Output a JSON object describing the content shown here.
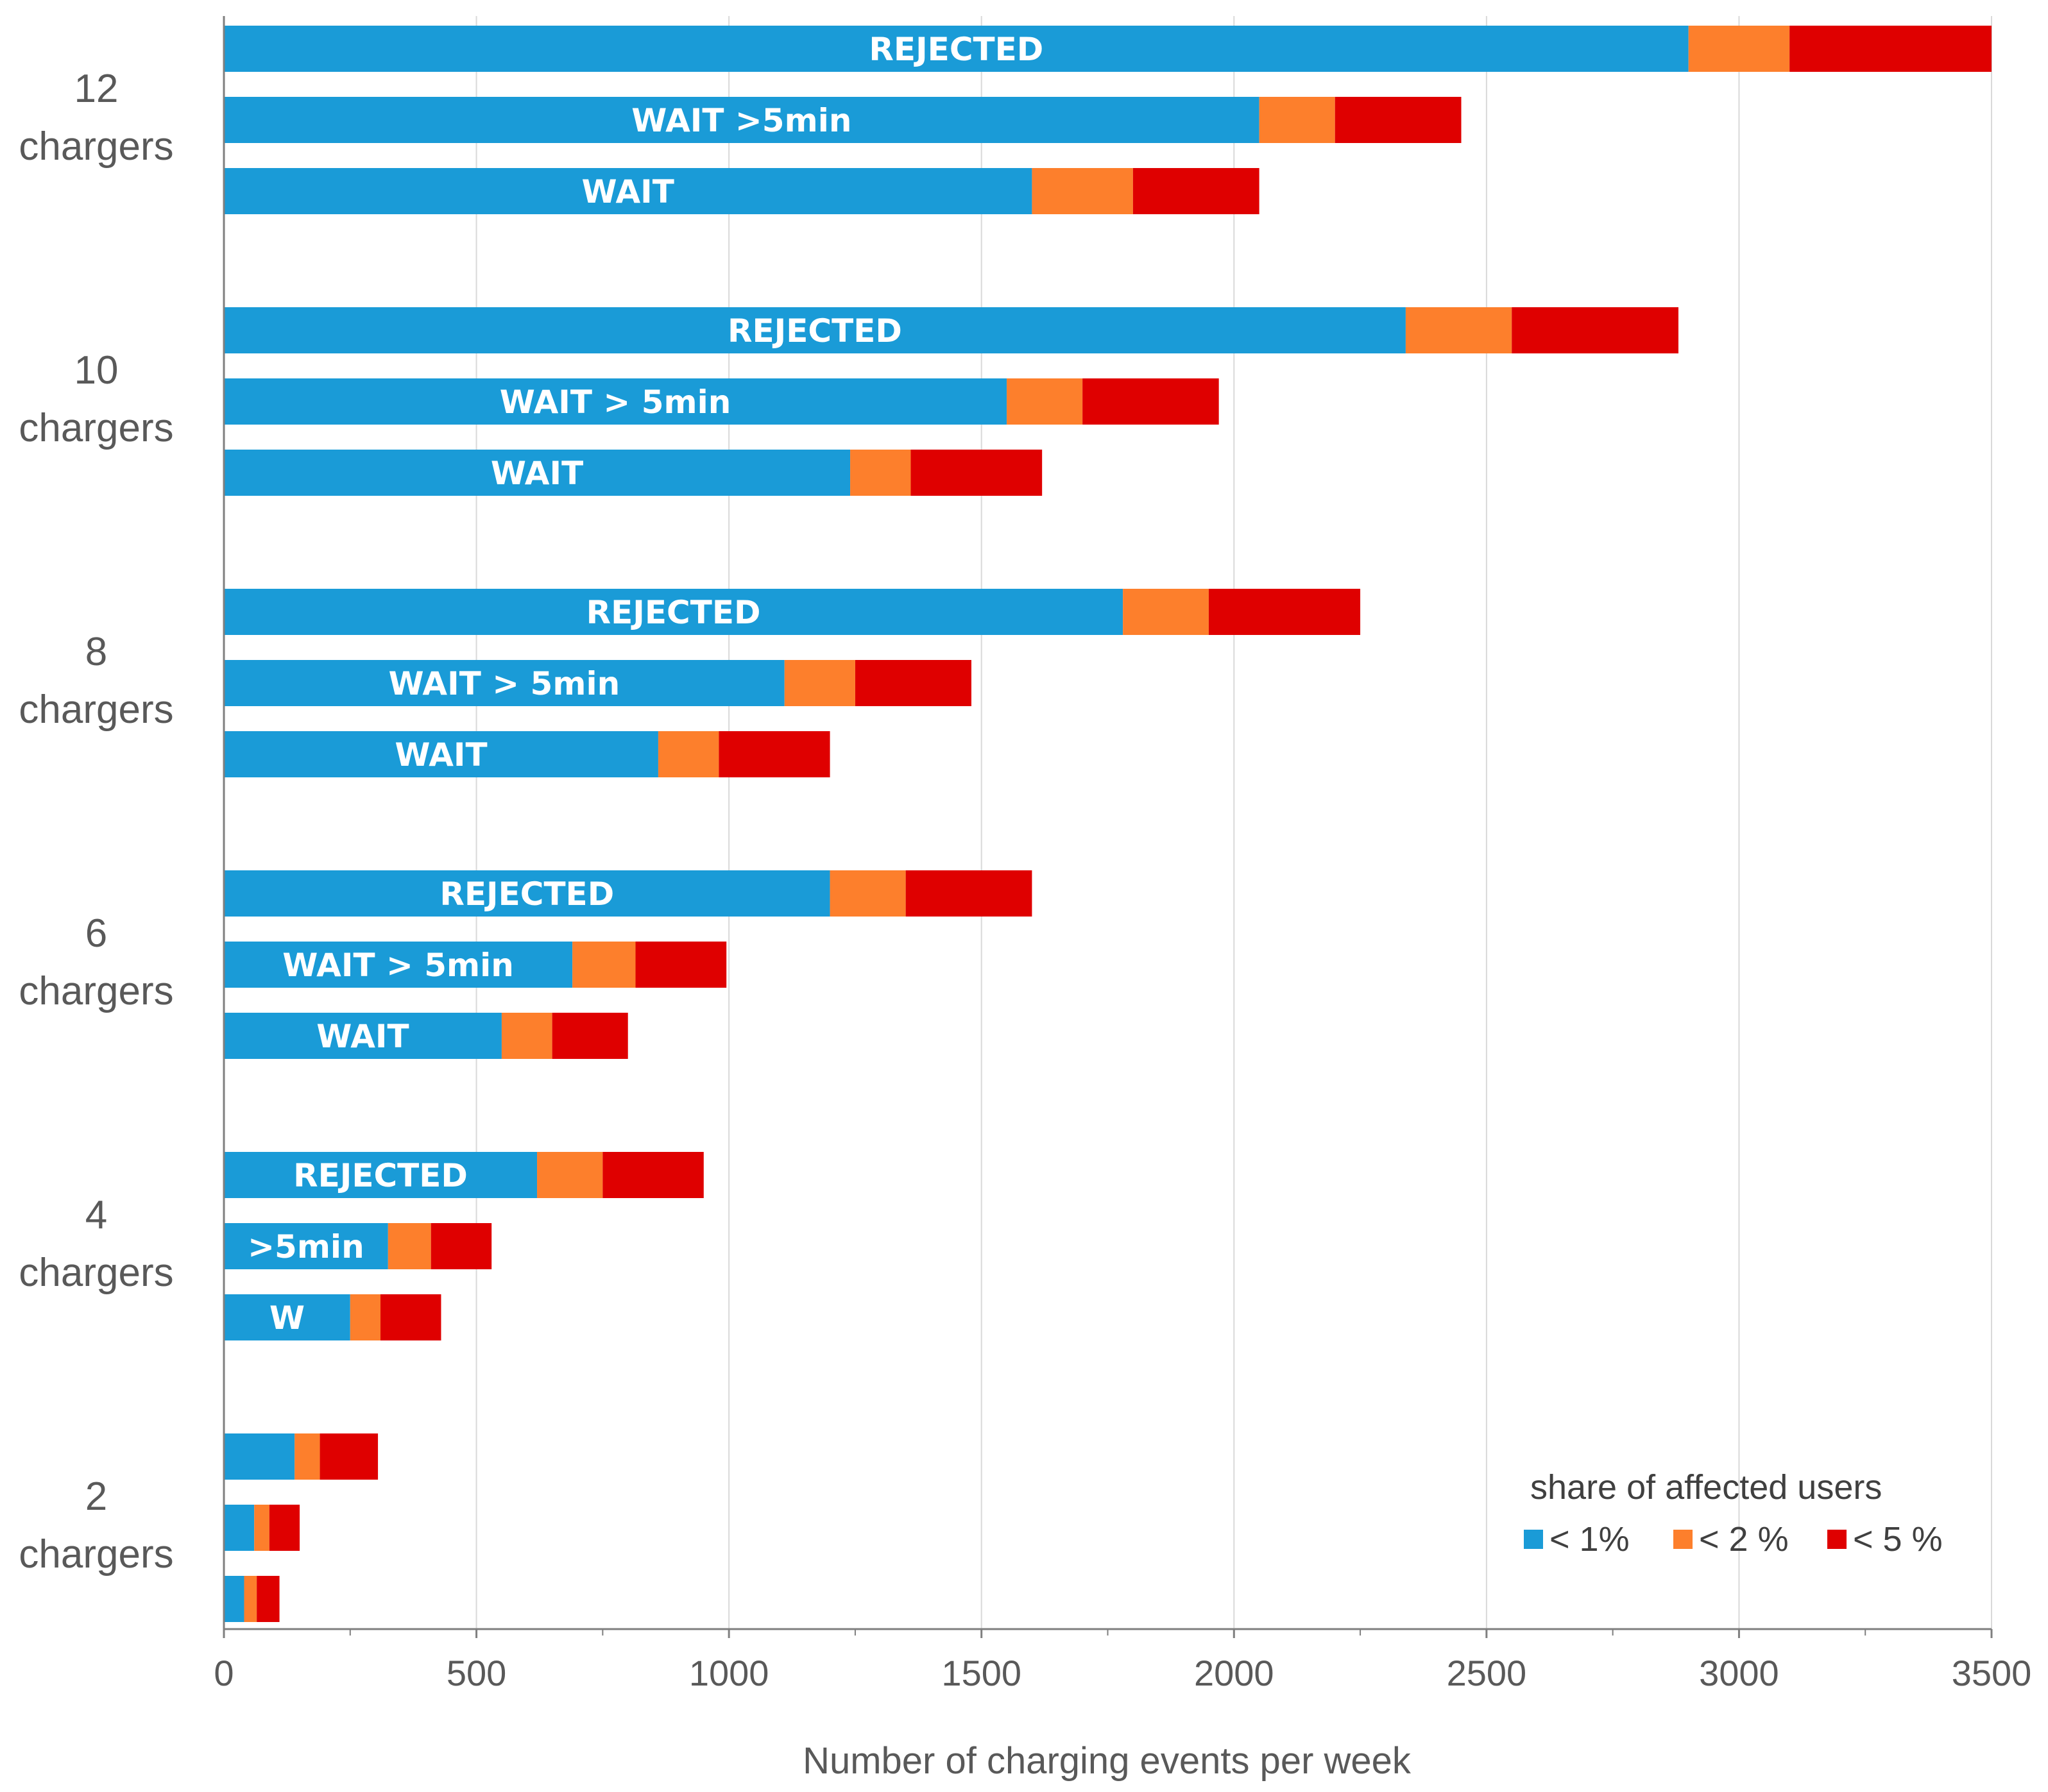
{
  "chart_data": {
    "type": "bar",
    "orientation": "horizontal",
    "stacked": true,
    "xlabel": "Number of charging events per week",
    "xlim": [
      0,
      3500
    ],
    "xticks": [
      "0",
      "500",
      "1000",
      "1500",
      "2000",
      "2500",
      "3000",
      "3500"
    ],
    "grid": "vertical",
    "legend": {
      "title": "share of affected users",
      "position": "bottom-right",
      "entries": [
        "< 1%",
        "< 2 %",
        "< 5 %"
      ]
    },
    "colors": {
      "lt1": "#1a9bd7",
      "lt2": "#fd7f2c",
      "lt5": "#df0000"
    },
    "groups": [
      {
        "line1": "12",
        "line2": "chargers",
        "bars": [
          {
            "label": "REJECTED",
            "values": [
              2900,
              200,
              400
            ]
          },
          {
            "label": "WAIT >5min",
            "values": [
              2050,
              150,
              250
            ]
          },
          {
            "label": "WAIT",
            "values": [
              1600,
              200,
              250
            ]
          }
        ]
      },
      {
        "line1": "10",
        "line2": "chargers",
        "bars": [
          {
            "label": "REJECTED",
            "values": [
              2340,
              210,
              330
            ]
          },
          {
            "label": "WAIT > 5min",
            "values": [
              1550,
              150,
              270
            ]
          },
          {
            "label": "WAIT",
            "values": [
              1240,
              120,
              260
            ]
          }
        ]
      },
      {
        "line1": "8",
        "line2": "chargers",
        "bars": [
          {
            "label": "REJECTED",
            "values": [
              1780,
              170,
              300
            ]
          },
          {
            "label": "WAIT > 5min",
            "values": [
              1110,
              140,
              230
            ]
          },
          {
            "label": "WAIT",
            "values": [
              860,
              120,
              220
            ]
          }
        ]
      },
      {
        "line1": "6",
        "line2": "chargers",
        "bars": [
          {
            "label": "REJECTED",
            "values": [
              1200,
              150,
              250
            ]
          },
          {
            "label": "WAIT > 5min",
            "values": [
              690,
              125,
              180
            ]
          },
          {
            "label": "WAIT",
            "values": [
              550,
              100,
              150
            ]
          }
        ]
      },
      {
        "line1": "4",
        "line2": "chargers",
        "bars": [
          {
            "label": "REJECTED",
            "values": [
              620,
              130,
              200
            ]
          },
          {
            "label": ">5min",
            "values": [
              325,
              85,
              120
            ]
          },
          {
            "label": "W",
            "values": [
              250,
              60,
              120
            ]
          }
        ]
      },
      {
        "line1": "2",
        "line2": "chargers",
        "bars": [
          {
            "label": "",
            "values": [
              140,
              50,
              115
            ]
          },
          {
            "label": "",
            "values": [
              60,
              30,
              60
            ]
          },
          {
            "label": "",
            "values": [
              40,
              25,
              45
            ]
          }
        ]
      }
    ]
  }
}
